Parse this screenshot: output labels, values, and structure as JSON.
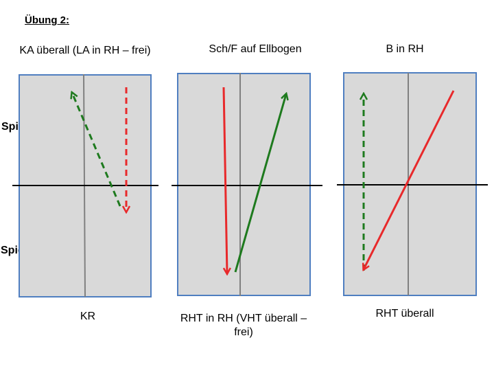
{
  "heading": "Übung 2:",
  "player_labels": {
    "top": "Spieler B",
    "bottom": "Spieler A"
  },
  "panels": [
    {
      "top_caption": "KA überall (LA in RH – frei)",
      "bottom_caption": "KR",
      "arrows": [
        {
          "color": "#1e7a1e",
          "style": "dashed"
        },
        {
          "color": "#e8292b",
          "style": "dashed"
        }
      ]
    },
    {
      "top_caption": "Sch/F auf Ellbogen",
      "bottom_caption": "RHT in RH (VHT überall – frei)",
      "arrows": [
        {
          "color": "#e8292b",
          "style": "solid"
        },
        {
          "color": "#1e7a1e",
          "style": "solid"
        }
      ]
    },
    {
      "top_caption": "B in RH",
      "bottom_caption": "RHT überall",
      "arrows": [
        {
          "color": "#1e7a1e",
          "style": "dashed"
        },
        {
          "color": "#e8292b",
          "style": "solid"
        }
      ]
    }
  ],
  "colors": {
    "table_fill": "#d9d9d9",
    "table_border": "#4f7ec0",
    "center_line": "#808080",
    "net": "#000000",
    "red": "#e8292b",
    "green": "#1e7a1e"
  }
}
